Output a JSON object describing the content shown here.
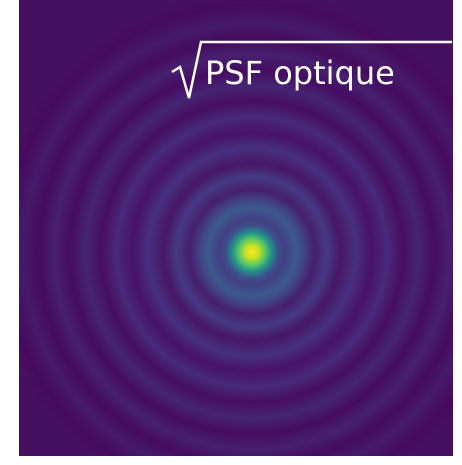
{
  "label": "PSF optique"
}
